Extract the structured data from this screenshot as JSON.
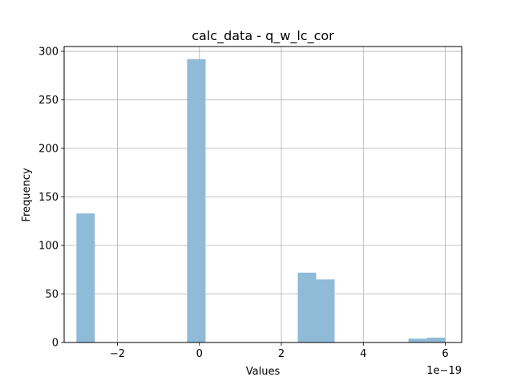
{
  "chart_data": {
    "type": "bar",
    "title": "calc_data - q_w_lc_cor",
    "xlabel": "Values",
    "ylabel": "Frequency",
    "x_offset_label": "1e−19",
    "x_scale_exponent": -19,
    "xlim": [
      -3.3,
      6.4
    ],
    "ylim": [
      0,
      305
    ],
    "xticks": [
      -2,
      0,
      2,
      4,
      6
    ],
    "xtick_labels": [
      "−2",
      "0",
      "2",
      "4",
      "6"
    ],
    "yticks": [
      0,
      50,
      100,
      150,
      200,
      250,
      300
    ],
    "ytick_labels": [
      "0",
      "50",
      "100",
      "150",
      "200",
      "250",
      "300"
    ],
    "grid": true,
    "bar_color": "#8fbbd9",
    "bins": [
      {
        "x0": -3.0,
        "x1": -2.55,
        "count": 133
      },
      {
        "x0": -0.3,
        "x1": 0.15,
        "count": 292
      },
      {
        "x0": 2.4,
        "x1": 2.85,
        "count": 72
      },
      {
        "x0": 2.85,
        "x1": 3.3,
        "count": 65
      },
      {
        "x0": 5.1,
        "x1": 5.55,
        "count": 4
      },
      {
        "x0": 5.55,
        "x1": 6.0,
        "count": 5
      }
    ]
  }
}
